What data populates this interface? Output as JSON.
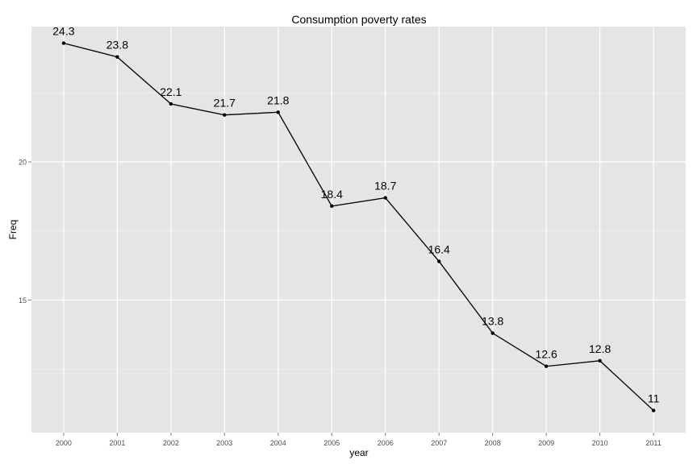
{
  "chart_data": {
    "type": "line",
    "title": "Consumption poverty rates",
    "xlabel": "year",
    "ylabel": "Freq",
    "categories": [
      "2000",
      "2001",
      "2002",
      "2003",
      "2004",
      "2005",
      "2006",
      "2007",
      "2008",
      "2009",
      "2010",
      "2011"
    ],
    "values": [
      24.3,
      23.8,
      22.1,
      21.7,
      21.8,
      18.4,
      18.7,
      16.4,
      13.8,
      12.6,
      12.8,
      11
    ],
    "data_labels": [
      "24.3",
      "23.8",
      "22.1",
      "21.7",
      "21.8",
      "18.4",
      "18.7",
      "16.4",
      "13.8",
      "12.6",
      "12.8",
      "11"
    ],
    "y_ticks": [
      15,
      20
    ],
    "y_tick_labels": [
      "15",
      "20"
    ],
    "ylim": [
      10.2,
      24.9
    ],
    "grid": true,
    "panel_color": "#e5e5e5",
    "grid_color": "#ffffff",
    "line_color": "#000000"
  }
}
